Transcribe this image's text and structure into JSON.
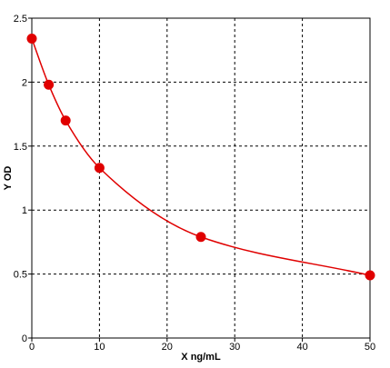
{
  "chart_data": {
    "type": "line",
    "xlabel": "X ng/mL",
    "ylabel": "Y OD",
    "xlim": [
      0,
      50
    ],
    "ylim": [
      0,
      2.5
    ],
    "xticks": [
      0,
      10,
      20,
      30,
      40,
      50
    ],
    "xtick_labels": [
      "0",
      "10",
      "20",
      "30",
      "40",
      "50"
    ],
    "yticks": [
      0,
      0.5,
      1,
      1.5,
      2,
      2.5
    ],
    "ytick_labels": [
      "0",
      "0.5",
      "1",
      "1.5",
      "2",
      "2.5"
    ],
    "grid": true,
    "series": [
      {
        "x": [
          0,
          2.5,
          5,
          10,
          25,
          50
        ],
        "y": [
          2.34,
          1.98,
          1.7,
          1.33,
          0.79,
          0.49
        ],
        "color": "#e00000",
        "marker": "circle",
        "curve": "smooth"
      }
    ]
  }
}
